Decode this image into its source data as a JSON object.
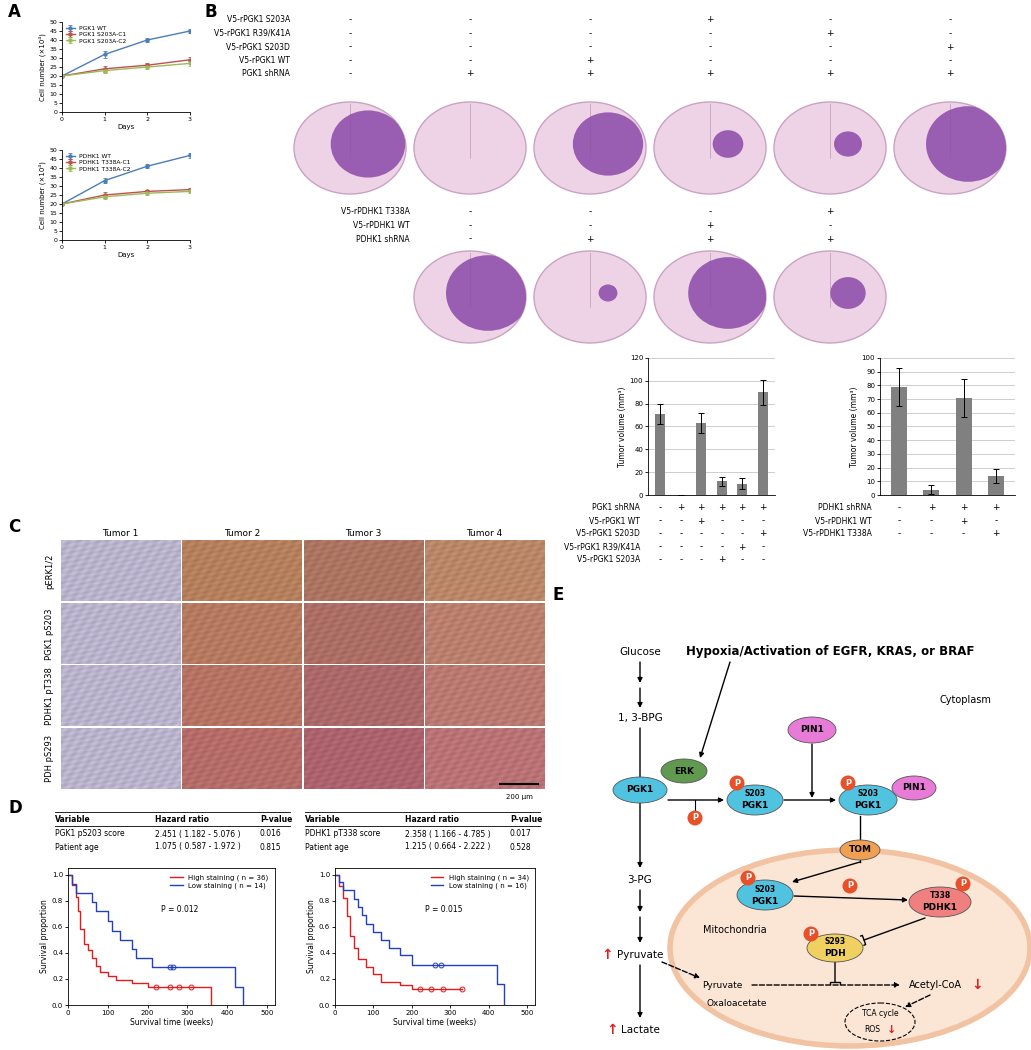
{
  "panel_labels": [
    "A",
    "B",
    "C",
    "D",
    "E"
  ],
  "chart_data": [
    {
      "type": "line",
      "xlabel": "Days",
      "ylabel": "Cell number (×10⁴)",
      "x": [
        0,
        1,
        2,
        3
      ],
      "xlim": [
        0,
        3
      ],
      "xticks": [
        0,
        1,
        2,
        3
      ],
      "ylim": [
        0,
        50
      ],
      "yticks": [
        0,
        5,
        10,
        15,
        20,
        25,
        30,
        35,
        40,
        45,
        50
      ],
      "legend": "upper left",
      "marker": "circle",
      "series": [
        {
          "name": "PGK1 WT",
          "color": "#4a7ebb",
          "values": [
            20,
            32,
            40,
            45
          ],
          "errors": [
            0,
            1.8,
            1.2,
            1.0
          ]
        },
        {
          "name": "PGK1 S203A-C1",
          "color": "#c0504d",
          "values": [
            20,
            24,
            26,
            29
          ],
          "errors": [
            0,
            1.5,
            1.2,
            1.5
          ]
        },
        {
          "name": "PGK1 S203A-C2",
          "color": "#9bbb59",
          "values": [
            20,
            23,
            25,
            27
          ],
          "errors": [
            0,
            1.2,
            1.0,
            1.2
          ]
        }
      ]
    },
    {
      "type": "line",
      "xlabel": "Days",
      "ylabel": "Cell number (×10⁴)",
      "x": [
        0,
        1,
        2,
        3
      ],
      "xlim": [
        0,
        3
      ],
      "xticks": [
        0,
        1,
        2,
        3
      ],
      "ylim": [
        0,
        50
      ],
      "yticks": [
        0,
        5,
        10,
        15,
        20,
        25,
        30,
        35,
        40,
        45,
        50
      ],
      "legend": "upper left",
      "marker": "circle",
      "series": [
        {
          "name": "PDHK1 WT",
          "color": "#4a7ebb",
          "values": [
            20,
            33,
            41,
            47
          ],
          "errors": [
            0,
            1.5,
            1.2,
            1.2
          ]
        },
        {
          "name": "PDHK1 T338A-C1",
          "color": "#c0504d",
          "values": [
            20,
            25,
            27,
            28
          ],
          "errors": [
            0,
            1.5,
            1.0,
            1.0
          ]
        },
        {
          "name": "PDHK1 T338A-C2",
          "color": "#9bbb59",
          "values": [
            20,
            24,
            26,
            27
          ],
          "errors": [
            0,
            1.2,
            1.0,
            1.0
          ]
        }
      ]
    },
    {
      "type": "bar",
      "ylabel": "Tumor volume (mm³)",
      "categories": [
        null,
        null,
        null,
        null,
        null,
        null
      ],
      "values": [
        71,
        0,
        63,
        12,
        10,
        90
      ],
      "errors": [
        9,
        0,
        9,
        4,
        5,
        11
      ],
      "color": "#808080",
      "ylim": [
        0,
        120
      ],
      "yticks": [
        0,
        20,
        40,
        60,
        80,
        100,
        120
      ],
      "grid": true,
      "tick_labels": "y",
      "conditions": [
        {
          "label": "PGK1 shRNA",
          "marks": [
            "-",
            "+",
            "+",
            "+",
            "+",
            "+"
          ]
        },
        {
          "label": "V5-rPGK1 WT",
          "marks": [
            "-",
            "-",
            "+",
            "-",
            "-",
            "-"
          ]
        },
        {
          "label": "V5-rPGK1 S203D",
          "marks": [
            "-",
            "-",
            "-",
            "-",
            "-",
            "+"
          ]
        },
        {
          "label": "V5-rPGK1 R39/K41A",
          "marks": [
            "-",
            "-",
            "-",
            "-",
            "+",
            "-"
          ]
        },
        {
          "label": "V5-rPGK1 S203A",
          "marks": [
            "-",
            "-",
            "-",
            "+",
            "-",
            "-"
          ]
        }
      ]
    },
    {
      "type": "bar",
      "ylabel": "Tumor volume (mm³)",
      "categories": [
        null,
        null,
        null,
        null
      ],
      "values": [
        79,
        4,
        71,
        14
      ],
      "errors": [
        14,
        3,
        14,
        5
      ],
      "color": "#808080",
      "ylim": [
        0,
        100
      ],
      "yticks": [
        0,
        10,
        20,
        30,
        40,
        50,
        60,
        70,
        80,
        90,
        100
      ],
      "grid": true,
      "tick_labels": "y",
      "conditions": [
        {
          "label": "PDHK1 shRNA",
          "marks": [
            "-",
            "+",
            "+",
            "+"
          ]
        },
        {
          "label": "V5-rPDHK1 WT",
          "marks": [
            "-",
            "-",
            "+",
            "-"
          ]
        },
        {
          "label": "V5-rPDHK1 T338A",
          "marks": [
            "-",
            "-",
            "-",
            "+"
          ]
        }
      ]
    },
    {
      "type": "step",
      "xlabel": "Survival time (weeks)",
      "ylabel": "Survival proportion",
      "xlim": [
        0,
        520
      ],
      "xticks": [
        0,
        100,
        200,
        300,
        400,
        500
      ],
      "ylim": [
        0,
        1.05
      ],
      "yticks": [
        {
          "value": 0,
          "label": "0.0"
        },
        {
          "value": 0.2,
          "label": "0.2"
        },
        {
          "value": 0.4,
          "label": "0.4"
        },
        {
          "value": 0.6,
          "label": "0.6"
        },
        {
          "value": 0.8,
          "label": "0.8"
        },
        {
          "value": 1.0,
          "label": "1.0"
        }
      ],
      "legend": "upper right",
      "annotation": "P = 0.012",
      "marker": "circle",
      "series": [
        {
          "name": "High staining ( n = 36)",
          "color": "#e41a1c",
          "x": [
            0,
            10,
            20,
            25,
            30,
            40,
            50,
            60,
            70,
            80,
            100,
            120,
            160,
            200,
            360
          ],
          "values": [
            1.0,
            0.92,
            0.83,
            0.72,
            0.58,
            0.47,
            0.42,
            0.36,
            0.3,
            0.25,
            0.22,
            0.19,
            0.17,
            0.14,
            0.0
          ],
          "censor_x": [
            220,
            255,
            280,
            310
          ],
          "censor_values": [
            0.14,
            0.14,
            0.14,
            0.14
          ]
        },
        {
          "name": "Low staining ( n = 14)",
          "color": "#2040c0",
          "x": [
            0,
            10,
            20,
            60,
            70,
            100,
            110,
            130,
            160,
            170,
            210,
            420,
            440
          ],
          "values": [
            1.0,
            0.93,
            0.86,
            0.79,
            0.72,
            0.64,
            0.57,
            0.5,
            0.43,
            0.36,
            0.29,
            0.14,
            0.0
          ],
          "censor_x": [
            255,
            265
          ],
          "censor_values": [
            0.29,
            0.29
          ]
        }
      ]
    },
    {
      "type": "step",
      "xlabel": "Survival time (weeks)",
      "ylabel": "Survival proportion",
      "xlim": [
        0,
        520
      ],
      "xticks": [
        0,
        100,
        200,
        300,
        400,
        500
      ],
      "ylim": [
        0,
        1.05
      ],
      "yticks": [
        {
          "value": 0,
          "label": "0.0"
        },
        {
          "value": 0.2,
          "label": "0.2"
        },
        {
          "value": 0.4,
          "label": "0.4"
        },
        {
          "value": 0.6,
          "label": "0.6"
        },
        {
          "value": 0.8,
          "label": "0.8"
        },
        {
          "value": 1.0,
          "label": "1.0"
        }
      ],
      "legend": "upper right",
      "annotation": "P = 0.015",
      "marker": "circle",
      "series": [
        {
          "name": "High staining ( n = 34)",
          "color": "#e41a1c",
          "x": [
            0,
            10,
            20,
            30,
            40,
            50,
            60,
            80,
            100,
            120,
            170,
            200,
            330
          ],
          "values": [
            1.0,
            0.91,
            0.82,
            0.68,
            0.53,
            0.44,
            0.35,
            0.29,
            0.24,
            0.18,
            0.15,
            0.12,
            0.12
          ],
          "censor_x": [
            220,
            250,
            280,
            330
          ],
          "censor_values": [
            0.12,
            0.12,
            0.12,
            0.12
          ]
        },
        {
          "name": "Low staining ( n = 16)",
          "color": "#2040c0",
          "x": [
            0,
            10,
            20,
            50,
            60,
            70,
            80,
            100,
            120,
            140,
            170,
            200,
            420,
            440
          ],
          "values": [
            1.0,
            0.94,
            0.88,
            0.81,
            0.75,
            0.69,
            0.62,
            0.56,
            0.5,
            0.44,
            0.38,
            0.31,
            0.16,
            0.0
          ],
          "censor_x": [
            260,
            275
          ],
          "censor_values": [
            0.31,
            0.31
          ]
        }
      ]
    }
  ],
  "brain_sections": [
    {
      "rows": [
        {
          "label": "V5-rPGK1 S203A",
          "marks": [
            "-",
            "-",
            "-",
            "+",
            "-",
            "-"
          ]
        },
        {
          "label": "V5-rPGK1 R39/K41A",
          "marks": [
            "-",
            "-",
            "-",
            "-",
            "+",
            "-"
          ]
        },
        {
          "label": "V5-rPGK1 S203D",
          "marks": [
            "-",
            "-",
            "-",
            "-",
            "-",
            "+"
          ]
        },
        {
          "label": "V5-rPGK1 WT",
          "marks": [
            "-",
            "-",
            "+",
            "-",
            "-",
            "-"
          ]
        },
        {
          "label": "PGK1 shRNA",
          "marks": [
            "-",
            "+",
            "+",
            "+",
            "+",
            "+"
          ]
        }
      ]
    },
    {
      "rows": [
        {
          "label": "V5-rPDHK1 T338A",
          "marks": [
            "-",
            "-",
            "-",
            "+"
          ]
        },
        {
          "label": "V5-rPDHK1 WT",
          "marks": [
            "-",
            "-",
            "+",
            "-"
          ]
        },
        {
          "label": "PDHK1 shRNA",
          "marks": [
            "-",
            "+",
            "+",
            "+"
          ]
        }
      ]
    }
  ],
  "ihc": {
    "columns": [
      "Tumor 1",
      "Tumor 2",
      "Tumor 3",
      "Tumor 4"
    ],
    "rows": [
      "pERK1/2",
      "PGK1 pS203",
      "PDHK1 pT338",
      "PDH pS293"
    ],
    "scale_bar": "200 µm"
  },
  "cox_tables": [
    {
      "header": [
        "Variable",
        "Hazard ratio",
        "P-value"
      ],
      "rows": [
        [
          "PGK1 pS203 score",
          "2.451 ( 1.182 - 5.076 )",
          "0.016"
        ],
        [
          "Patient age",
          "1.075 ( 0.587 - 1.972 )",
          "0.815"
        ]
      ]
    },
    {
      "header": [
        "Variable",
        "Hazard ratio",
        "P-value"
      ],
      "rows": [
        [
          "PDHK1 pT338 score",
          "2.358 ( 1.166 - 4.785 )",
          "0.017"
        ],
        [
          "Patient age",
          "1.215 ( 0.664 - 2.222 )",
          "0.528"
        ]
      ]
    }
  ],
  "diagram": {
    "stimulus": "Hypoxia/Activation of EGFR, KRAS, or BRAF",
    "cytoplasm": "Cytoplasm",
    "mitochondria": "Mitochondria",
    "glucose": "Glucose",
    "bpg": "1, 3-BPG",
    "pg": "3-PG",
    "pyruvate": "Pyruvate",
    "lactate": "Lactate",
    "erk": "ERK",
    "pgk1": "PGK1",
    "pin1": "PIN1",
    "tom": "TOM",
    "pdhk1": "PDHK1",
    "pdh": "PDH",
    "s203": "S203",
    "t338": "T338",
    "s293": "S293",
    "phospho": "P",
    "oxaloacetate": "Oxaloacetate",
    "acetyl_coa": "Acetyl-CoA",
    "tca": "TCA cycle",
    "ros": "ROS",
    "up": "↑",
    "down": "↓"
  }
}
